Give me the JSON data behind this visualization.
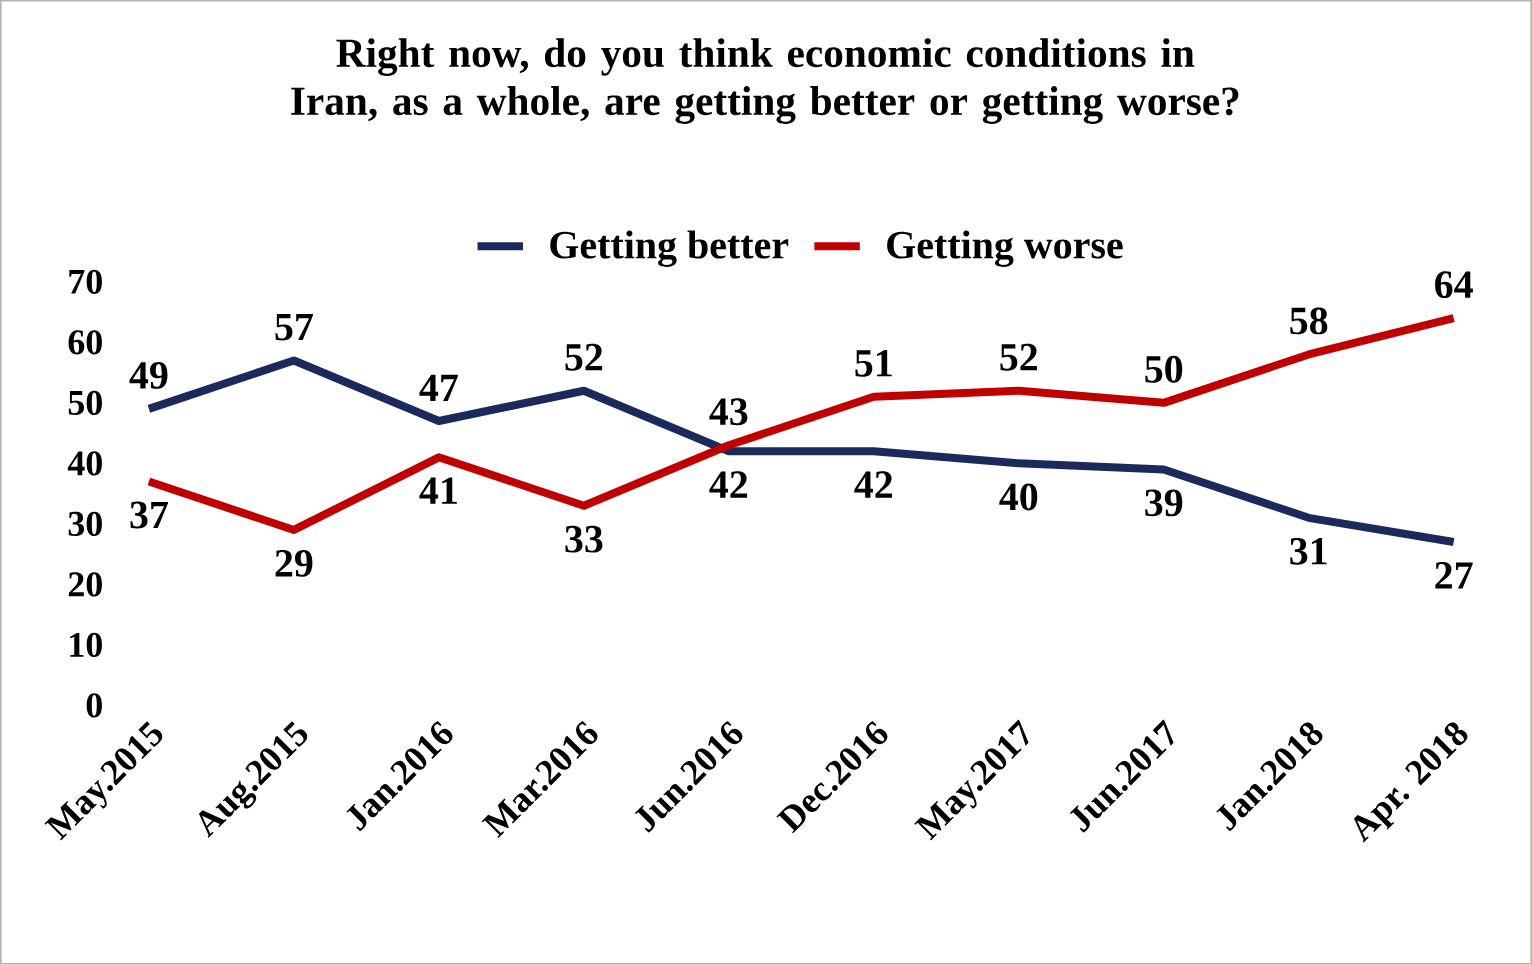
{
  "chart_data": {
    "type": "line",
    "title": "Right now, do you think economic conditions in Iran, as a whole, are getting better or getting worse?",
    "categories": [
      "May.2015",
      "Aug.2015",
      "Jan.2016",
      "Mar.2016",
      "Jun.2016",
      "Dec.2016",
      "May.2017",
      "Jun.2017",
      "Jan.2018",
      "Apr. 2018"
    ],
    "series": [
      {
        "name": "Getting better",
        "color": "#1b2a5c",
        "values": [
          49,
          57,
          47,
          52,
          42,
          42,
          40,
          39,
          31,
          27
        ]
      },
      {
        "name": "Getting worse",
        "color": "#c00000",
        "values": [
          37,
          29,
          41,
          33,
          43,
          51,
          52,
          50,
          58,
          64
        ]
      }
    ],
    "ylim": [
      0,
      70
    ],
    "yticks": [
      0,
      10,
      20,
      30,
      40,
      50,
      60,
      70
    ],
    "grid": false,
    "legend": "top",
    "data_labels": true,
    "marker": "none",
    "line_style": "solid"
  }
}
